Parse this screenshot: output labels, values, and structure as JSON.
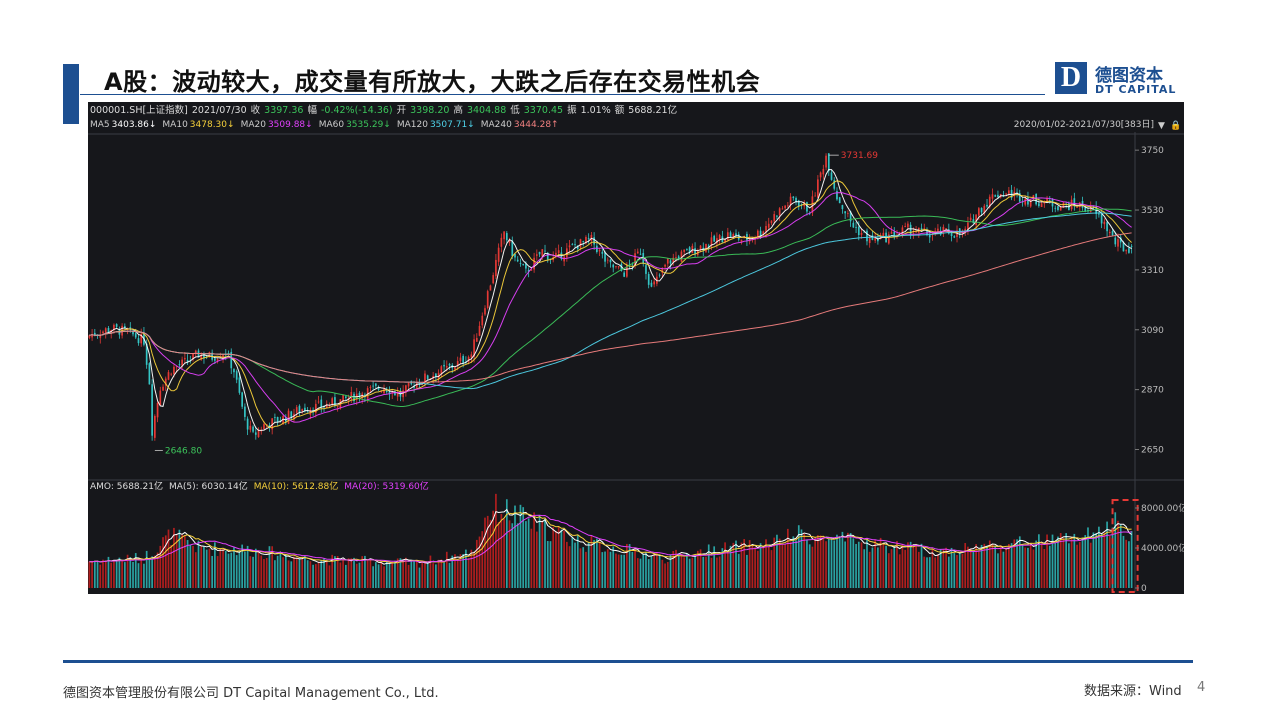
{
  "slide": {
    "title": "A股：波动较大，成交量有所放大，大跌之后存在交易性机会",
    "logo_cn": "德图资本",
    "logo_en": "DT CAPITAL",
    "logo_mark": "D",
    "footer_company": "德图资本管理股份有限公司  DT Capital  Management  Co., Ltd.",
    "footer_source": "数据来源：Wind",
    "page_number": "4",
    "brand_color": "#1d4f91"
  },
  "chart_data": {
    "type": "candlestick",
    "info_bar": [
      {
        "text": "000001.SH[上证指数]",
        "color": "#dddddd"
      },
      {
        "text": "2021/07/30",
        "color": "#dddddd"
      },
      {
        "text": "收",
        "color": "#dddddd"
      },
      {
        "text": "3397.36",
        "color": "#3cc45b"
      },
      {
        "text": "幅",
        "color": "#dddddd"
      },
      {
        "text": "-0.42%(-14.36)",
        "color": "#3cc45b"
      },
      {
        "text": "开",
        "color": "#dddddd"
      },
      {
        "text": "3398.20",
        "color": "#3cc45b"
      },
      {
        "text": "高",
        "color": "#dddddd"
      },
      {
        "text": "3404.88",
        "color": "#3cc45b"
      },
      {
        "text": "低",
        "color": "#dddddd"
      },
      {
        "text": "3370.45",
        "color": "#3cc45b"
      },
      {
        "text": "振",
        "color": "#dddddd"
      },
      {
        "text": "1.01%",
        "color": "#dddddd"
      },
      {
        "text": "额",
        "color": "#dddddd"
      },
      {
        "text": "5688.21亿",
        "color": "#dddddd"
      }
    ],
    "ma_legend": [
      {
        "name": "MA5",
        "value": "3403.86↓",
        "color": "#ffffff"
      },
      {
        "name": "MA10",
        "value": "3478.30↓",
        "color": "#f5d03b"
      },
      {
        "name": "MA20",
        "value": "3509.88↓",
        "color": "#e040fb"
      },
      {
        "name": "MA60",
        "value": "3535.29↓",
        "color": "#3cc45b"
      },
      {
        "name": "MA120",
        "value": "3507.71↓",
        "color": "#4fd1e8"
      },
      {
        "name": "MA240",
        "value": "3444.28↑",
        "color": "#f08080"
      }
    ],
    "range_label": "2020/01/02-2021/07/30[383日]",
    "price_axis": {
      "ylim": [
        2560,
        3780
      ],
      "ticks": [
        3750,
        3530,
        3310,
        3090,
        2870,
        2650
      ]
    },
    "annotations": {
      "high_label": "3731.69",
      "low_label": "2646.80"
    },
    "price_path": [
      [
        0,
        3070
      ],
      [
        8,
        3095
      ],
      [
        14,
        3082
      ],
      [
        20,
        3050
      ],
      [
        22,
        2900
      ],
      [
        23,
        2720
      ],
      [
        26,
        2880
      ],
      [
        30,
        2945
      ],
      [
        36,
        2975
      ],
      [
        40,
        3000
      ],
      [
        45,
        2990
      ],
      [
        50,
        3010
      ],
      [
        53,
        2940
      ],
      [
        57,
        2760
      ],
      [
        60,
        2700
      ],
      [
        64,
        2740
      ],
      [
        70,
        2760
      ],
      [
        78,
        2800
      ],
      [
        86,
        2810
      ],
      [
        94,
        2835
      ],
      [
        100,
        2860
      ],
      [
        108,
        2880
      ],
      [
        114,
        2850
      ],
      [
        120,
        2900
      ],
      [
        128,
        2935
      ],
      [
        134,
        2960
      ],
      [
        140,
        3000
      ],
      [
        148,
        3300
      ],
      [
        152,
        3450
      ],
      [
        156,
        3350
      ],
      [
        160,
        3300
      ],
      [
        166,
        3380
      ],
      [
        170,
        3350
      ],
      [
        178,
        3400
      ],
      [
        184,
        3420
      ],
      [
        190,
        3330
      ],
      [
        196,
        3300
      ],
      [
        202,
        3380
      ],
      [
        206,
        3240
      ],
      [
        212,
        3340
      ],
      [
        220,
        3380
      ],
      [
        228,
        3410
      ],
      [
        234,
        3440
      ],
      [
        240,
        3420
      ],
      [
        246,
        3450
      ],
      [
        252,
        3520
      ],
      [
        258,
        3570
      ],
      [
        264,
        3530
      ],
      [
        270,
        3730
      ],
      [
        274,
        3580
      ],
      [
        280,
        3470
      ],
      [
        286,
        3420
      ],
      [
        292,
        3430
      ],
      [
        300,
        3460
      ],
      [
        308,
        3440
      ],
      [
        314,
        3450
      ],
      [
        320,
        3440
      ],
      [
        326,
        3530
      ],
      [
        332,
        3590
      ],
      [
        338,
        3590
      ],
      [
        344,
        3570
      ],
      [
        350,
        3560
      ],
      [
        356,
        3545
      ],
      [
        362,
        3550
      ],
      [
        368,
        3525
      ],
      [
        372,
        3480
      ],
      [
        376,
        3410
      ],
      [
        380,
        3385
      ],
      [
        382,
        3397
      ]
    ],
    "volume_panel": {
      "legend": [
        {
          "text": "AMO: 5688.21亿",
          "color": "#dddddd"
        },
        {
          "text": "MA(5): 6030.14亿",
          "color": "#dddddd"
        },
        {
          "text": "MA(10): 5612.88亿",
          "color": "#f5d03b"
        },
        {
          "text": "MA(20): 5319.60亿",
          "color": "#e040fb"
        }
      ],
      "ylim": [
        0,
        9000
      ],
      "ticks": [
        {
          "value": 8000,
          "label": "8000.00亿"
        },
        {
          "value": 4000,
          "label": "4000.00亿"
        },
        {
          "value": 0,
          "label": "0"
        }
      ],
      "unit": "亿",
      "volume_path": [
        [
          0,
          2700
        ],
        [
          20,
          3000
        ],
        [
          30,
          5300
        ],
        [
          40,
          4000
        ],
        [
          60,
          3800
        ],
        [
          80,
          2900
        ],
        [
          100,
          2700
        ],
        [
          120,
          2500
        ],
        [
          140,
          3500
        ],
        [
          146,
          7600
        ],
        [
          150,
          8000
        ],
        [
          160,
          6800
        ],
        [
          170,
          5600
        ],
        [
          180,
          4600
        ],
        [
          200,
          3600
        ],
        [
          210,
          3000
        ],
        [
          230,
          3800
        ],
        [
          250,
          4400
        ],
        [
          260,
          5300
        ],
        [
          270,
          4900
        ],
        [
          290,
          4300
        ],
        [
          310,
          3600
        ],
        [
          330,
          4200
        ],
        [
          350,
          4600
        ],
        [
          370,
          5200
        ],
        [
          376,
          6700
        ],
        [
          380,
          5900
        ],
        [
          382,
          5700
        ]
      ]
    },
    "total_days": 383,
    "highlight_box": "recent volume spike (dashed red)",
    "colors": {
      "up": "#e53935",
      "down": "#35c6c6",
      "volume_up": "#b01e1e",
      "volume_down": "#2aa3a3"
    }
  }
}
